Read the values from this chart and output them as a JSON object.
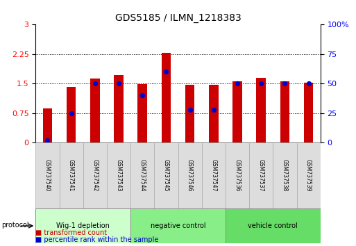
{
  "title": "GDS5185 / ILMN_1218383",
  "samples": [
    "GSM737540",
    "GSM737541",
    "GSM737542",
    "GSM737543",
    "GSM737544",
    "GSM737545",
    "GSM737546",
    "GSM737547",
    "GSM737536",
    "GSM737537",
    "GSM737538",
    "GSM737539"
  ],
  "transformed_count": [
    0.87,
    1.42,
    1.63,
    1.72,
    1.48,
    2.29,
    1.47,
    1.47,
    1.56,
    1.64,
    1.56,
    1.52
  ],
  "percentile_rank": [
    2,
    25,
    50,
    50,
    40,
    60,
    28,
    28,
    50,
    50,
    50,
    50
  ],
  "groups": [
    {
      "label": "Wig-1 depletion",
      "start": 0,
      "end": 4,
      "color": "#ccffcc"
    },
    {
      "label": "negative control",
      "start": 4,
      "end": 8,
      "color": "#88ee88"
    },
    {
      "label": "vehicle control",
      "start": 8,
      "end": 12,
      "color": "#66dd66"
    }
  ],
  "ylim_left": [
    0,
    3
  ],
  "ylim_right": [
    0,
    100
  ],
  "yticks_left": [
    0,
    0.75,
    1.5,
    2.25,
    3
  ],
  "yticks_right": [
    0,
    25,
    50,
    75,
    100
  ],
  "bar_color": "#cc0000",
  "dot_color": "#0000cc",
  "bar_width": 0.4,
  "group_row_color": "#ccffcc",
  "group_border_color": "#aaddaa",
  "label_area_color": "#dddddd",
  "label_area_border": "#aaaaaa"
}
